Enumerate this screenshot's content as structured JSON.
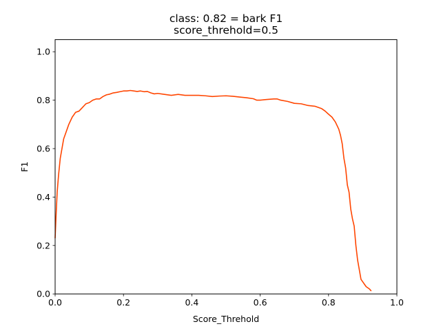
{
  "chart_data": {
    "type": "line",
    "title": "class: 0.82 = bark F1",
    "subtitle": "score_threhold=0.5",
    "xlabel": "Score_Threhold",
    "ylabel": "F1",
    "xlim": [
      0.0,
      1.0
    ],
    "ylim": [
      0.0,
      1.05
    ],
    "x_ticks": [
      "0.0",
      "0.2",
      "0.4",
      "0.6",
      "0.8",
      "1.0"
    ],
    "y_ticks": [
      "0.0",
      "0.2",
      "0.4",
      "0.6",
      "0.8",
      "1.0"
    ],
    "grid": false,
    "legend": "none",
    "series": [
      {
        "color": "#ff4500",
        "x": [
          0.0,
          0.003,
          0.006,
          0.01,
          0.015,
          0.02,
          0.025,
          0.03,
          0.04,
          0.05,
          0.06,
          0.07,
          0.08,
          0.09,
          0.1,
          0.11,
          0.12,
          0.13,
          0.14,
          0.15,
          0.16,
          0.17,
          0.18,
          0.19,
          0.2,
          0.21,
          0.22,
          0.23,
          0.24,
          0.25,
          0.26,
          0.27,
          0.28,
          0.29,
          0.3,
          0.32,
          0.34,
          0.36,
          0.38,
          0.4,
          0.42,
          0.44,
          0.46,
          0.48,
          0.5,
          0.52,
          0.54,
          0.56,
          0.58,
          0.59,
          0.6,
          0.62,
          0.64,
          0.65,
          0.66,
          0.68,
          0.7,
          0.72,
          0.74,
          0.76,
          0.78,
          0.79,
          0.8,
          0.81,
          0.82,
          0.83,
          0.835,
          0.84,
          0.845,
          0.85,
          0.855,
          0.86,
          0.865,
          0.87,
          0.875,
          0.88,
          0.885,
          0.89,
          0.895,
          0.9,
          0.905,
          0.91,
          0.915,
          0.92,
          0.925
        ],
        "y": [
          0.23,
          0.33,
          0.42,
          0.49,
          0.56,
          0.6,
          0.64,
          0.66,
          0.7,
          0.73,
          0.75,
          0.755,
          0.77,
          0.785,
          0.79,
          0.8,
          0.805,
          0.805,
          0.815,
          0.822,
          0.825,
          0.83,
          0.832,
          0.835,
          0.838,
          0.838,
          0.84,
          0.838,
          0.836,
          0.838,
          0.835,
          0.836,
          0.83,
          0.826,
          0.828,
          0.824,
          0.82,
          0.824,
          0.82,
          0.82,
          0.82,
          0.818,
          0.815,
          0.817,
          0.818,
          0.816,
          0.813,
          0.81,
          0.806,
          0.8,
          0.8,
          0.803,
          0.805,
          0.805,
          0.8,
          0.795,
          0.787,
          0.785,
          0.778,
          0.775,
          0.765,
          0.755,
          0.742,
          0.73,
          0.71,
          0.68,
          0.655,
          0.62,
          0.56,
          0.52,
          0.45,
          0.42,
          0.35,
          0.31,
          0.28,
          0.2,
          0.14,
          0.1,
          0.06,
          0.05,
          0.04,
          0.03,
          0.025,
          0.02,
          0.012
        ]
      }
    ]
  }
}
